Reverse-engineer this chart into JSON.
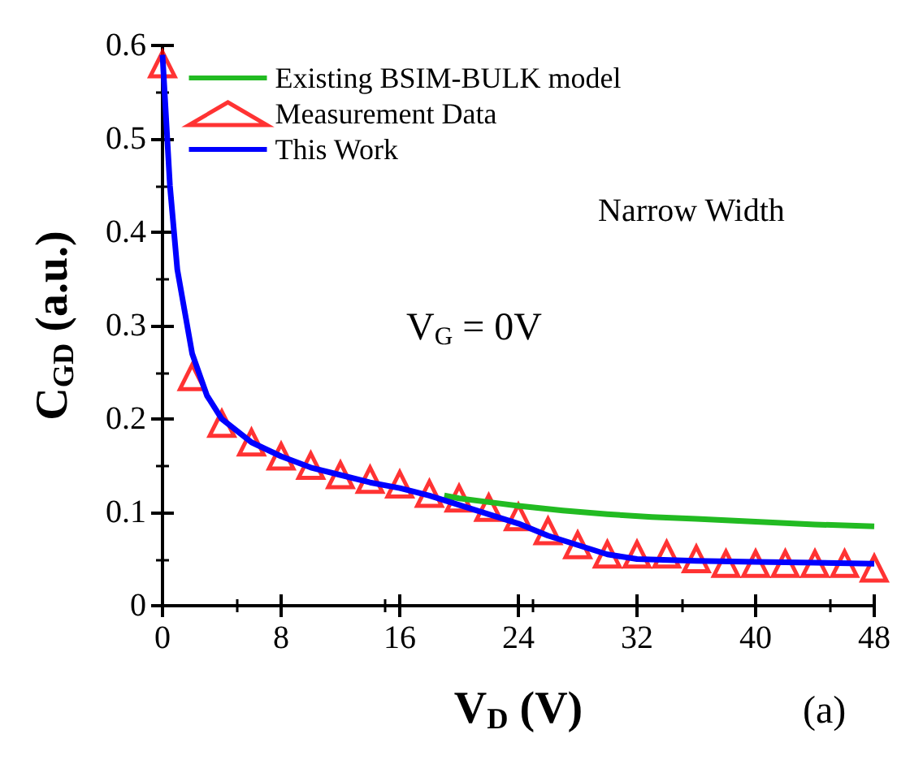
{
  "chart_data": {
    "type": "line",
    "xlabel": "V$_{D}$ (V)",
    "ylabel": "C$_{GD}$ (a.u.)",
    "xlim": [
      0,
      48
    ],
    "xticks": [
      0,
      8,
      16,
      24,
      32,
      40,
      48
    ],
    "ylim": [
      0,
      0.6
    ],
    "yticks": [
      0,
      0.1,
      0.2,
      0.3,
      0.4,
      0.5,
      0.6
    ],
    "grid": false,
    "legend": "top left",
    "annotations": [
      "Narrow Width",
      "V$_{G}$ = 0V",
      "(a)"
    ],
    "series": [
      {
        "name": "Existing BSIM-BULK model",
        "marker": "none",
        "color": "#22bb22",
        "x": [
          19,
          20,
          22,
          24,
          27,
          30,
          33,
          36,
          40,
          44,
          48
        ],
        "values": [
          0.118,
          0.115,
          0.111,
          0.107,
          0.102,
          0.098,
          0.095,
          0.093,
          0.09,
          0.087,
          0.085
        ]
      },
      {
        "name": "Measurement Data",
        "type": "scatter",
        "marker": "triangle",
        "color": "#ff0000",
        "x": [
          0,
          2,
          4,
          6,
          8,
          10,
          12,
          14,
          16,
          18,
          20,
          22,
          24,
          26,
          28,
          30,
          32,
          34,
          36,
          38,
          40,
          42,
          44,
          46,
          48
        ],
        "values": [
          0.58,
          0.245,
          0.195,
          0.175,
          0.16,
          0.15,
          0.14,
          0.135,
          0.13,
          0.12,
          0.115,
          0.105,
          0.095,
          0.08,
          0.065,
          0.055,
          0.055,
          0.055,
          0.05,
          0.045,
          0.045,
          0.045,
          0.045,
          0.045,
          0.04
        ]
      },
      {
        "name": "This Work",
        "marker": "none",
        "color": "#0000ff",
        "x": [
          0,
          0.5,
          1,
          2,
          3,
          4,
          6,
          8,
          10,
          12,
          14,
          16,
          18,
          20,
          22,
          24,
          26,
          28,
          30,
          32,
          36,
          40,
          44,
          48
        ],
        "values": [
          0.59,
          0.45,
          0.36,
          0.27,
          0.225,
          0.2,
          0.175,
          0.16,
          0.148,
          0.14,
          0.132,
          0.126,
          0.118,
          0.108,
          0.098,
          0.088,
          0.075,
          0.065,
          0.055,
          0.05,
          0.048,
          0.047,
          0.046,
          0.045
        ]
      }
    ]
  }
}
